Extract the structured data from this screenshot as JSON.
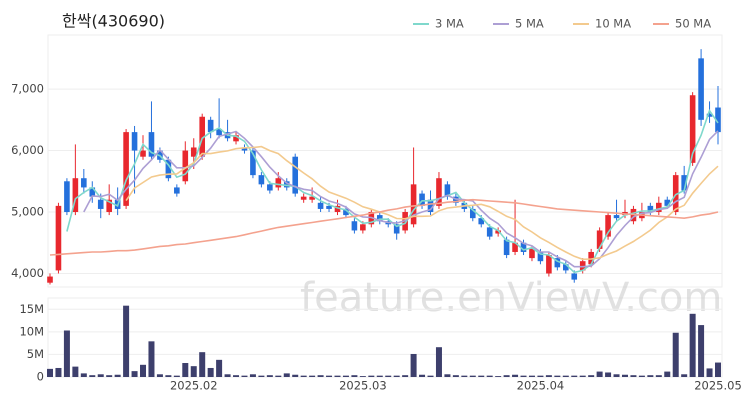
{
  "chart_data": [
    {
      "type": "candlestick",
      "title": "한싹(430690)",
      "watermark": "feature.enViewV.com",
      "categories": [
        null,
        null,
        null,
        null,
        null,
        null,
        null,
        null,
        null,
        null,
        null,
        null,
        null,
        null,
        null,
        null,
        null,
        "2025.02",
        null,
        null,
        null,
        null,
        null,
        null,
        null,
        null,
        null,
        null,
        null,
        null,
        null,
        null,
        null,
        null,
        null,
        null,
        null,
        "2025.03",
        null,
        null,
        null,
        null,
        null,
        null,
        null,
        null,
        null,
        null,
        null,
        null,
        null,
        null,
        null,
        null,
        null,
        null,
        null,
        null,
        "2025.04",
        null,
        null,
        null,
        null,
        null,
        null,
        null,
        null,
        null,
        null,
        null,
        null,
        null,
        null,
        null,
        null,
        null,
        null,
        null,
        null,
        "2025.05"
      ],
      "open": [
        3850,
        4050,
        5500,
        5000,
        5550,
        5400,
        5200,
        5000,
        5200,
        5100,
        6300,
        5900,
        6300,
        6000,
        5850,
        5400,
        5500,
        5900,
        5900,
        6500,
        6350,
        6300,
        6150,
        6050,
        6000,
        5600,
        5450,
        5400,
        5500,
        5900,
        5200,
        5200,
        5150,
        5100,
        5000,
        5050,
        4850,
        4700,
        4800,
        4950,
        4850,
        4800,
        4700,
        4800,
        5300,
        5200,
        5100,
        5450,
        5250,
        5150,
        5050,
        4900,
        4750,
        4650,
        4550,
        4350,
        4500,
        4250,
        4350,
        4000,
        4250,
        4150,
        4000,
        4050,
        4150,
        4400,
        4600,
        4950,
        4950,
        4850,
        4900,
        5100,
        5000,
        5200,
        5000,
        5600,
        5800,
        7500,
        6600,
        6700
      ],
      "high": [
        4000,
        5150,
        5550,
        6100,
        5700,
        5500,
        5300,
        5450,
        5400,
        6350,
        6400,
        6250,
        6800,
        6050,
        5900,
        5450,
        6150,
        6200,
        6600,
        6550,
        6850,
        6500,
        6300,
        6100,
        6050,
        5650,
        5500,
        5650,
        5550,
        5950,
        5300,
        5400,
        5250,
        5150,
        5200,
        5100,
        4900,
        4850,
        5050,
        5000,
        4900,
        4850,
        5050,
        6050,
        5350,
        5350,
        5650,
        5500,
        5300,
        5200,
        5100,
        4950,
        4800,
        4750,
        4600,
        5200,
        4550,
        4450,
        4400,
        4350,
        4300,
        4200,
        4050,
        4250,
        4400,
        4750,
        5000,
        5200,
        5200,
        5100,
        5150,
        5150,
        5250,
        5250,
        5650,
        5750,
        6950,
        7650,
        6800,
        7050
      ],
      "low": [
        3820,
        4000,
        4950,
        4950,
        5300,
        5150,
        4900,
        4950,
        4950,
        5050,
        5300,
        5850,
        5850,
        5800,
        5500,
        5250,
        5450,
        5700,
        5850,
        6200,
        6200,
        6150,
        6100,
        5950,
        5550,
        5400,
        5300,
        5350,
        5350,
        5250,
        5150,
        5150,
        5000,
        5000,
        4950,
        4900,
        4650,
        4650,
        4750,
        4800,
        4750,
        4550,
        4650,
        4750,
        5050,
        4950,
        5050,
        5200,
        5100,
        5000,
        4850,
        4750,
        4550,
        4600,
        4250,
        4300,
        4300,
        4200,
        4150,
        3950,
        4050,
        4000,
        3850,
        4000,
        4100,
        4350,
        4550,
        4850,
        4900,
        4800,
        4850,
        4950,
        4950,
        5050,
        4950,
        5300,
        5750,
        6400,
        6450,
        6100
      ],
      "close": [
        3950,
        5100,
        5000,
        5550,
        5400,
        5250,
        5050,
        5200,
        5050,
        6300,
        6000,
        6000,
        5900,
        5850,
        5550,
        5300,
        6000,
        6050,
        6550,
        6300,
        6250,
        6200,
        6250,
        6000,
        5600,
        5450,
        5350,
        5550,
        5400,
        5300,
        5250,
        5250,
        5050,
        5050,
        5100,
        4950,
        4700,
        4800,
        5000,
        4850,
        4800,
        4650,
        5000,
        5450,
        5100,
        5000,
        5550,
        5250,
        5150,
        5050,
        4900,
        4800,
        4600,
        4700,
        4300,
        4500,
        4350,
        4400,
        4200,
        4300,
        4100,
        4050,
        3900,
        4200,
        4350,
        4700,
        4950,
        4900,
        5000,
        5050,
        5000,
        5000,
        5150,
        5100,
        5600,
        5350,
        6900,
        6500,
        6550,
        6300
      ],
      "up_color": "#e8282e",
      "down_color": "#2470dc",
      "series": [
        {
          "name": "3 MA",
          "color": "#7fd8cc",
          "values": [
            null,
            null,
            4683,
            5217,
            5317,
            5400,
            5233,
            5167,
            5100,
            5517,
            5783,
            6100,
            5967,
            5917,
            5767,
            5567,
            5617,
            5783,
            6200,
            6300,
            6367,
            6250,
            6233,
            6150,
            5950,
            5683,
            5467,
            5450,
            5433,
            5417,
            5317,
            5267,
            5183,
            5117,
            5067,
            5033,
            4917,
            4817,
            4833,
            4883,
            4883,
            4767,
            4817,
            5033,
            5183,
            5183,
            5217,
            5267,
            5317,
            5150,
            5033,
            4917,
            4767,
            4700,
            4533,
            4500,
            4383,
            4417,
            4317,
            4300,
            4200,
            4150,
            4017,
            4050,
            4150,
            4417,
            4667,
            4850,
            4950,
            4983,
            5017,
            5017,
            5050,
            5083,
            5283,
            5350,
            5950,
            6250,
            6650,
            6450
          ]
        },
        {
          "name": "5 MA",
          "color": "#ad9fd4",
          "values": [
            null,
            null,
            null,
            null,
            5000,
            5260,
            5250,
            5290,
            5190,
            5370,
            5520,
            5710,
            5850,
            6010,
            5860,
            5720,
            5720,
            5750,
            5890,
            6040,
            6230,
            6270,
            6310,
            6200,
            6060,
            5900,
            5730,
            5590,
            5470,
            5410,
            5370,
            5350,
            5250,
            5180,
            5140,
            5080,
            4970,
            4920,
            4910,
            4860,
            4830,
            4820,
            4860,
            4950,
            5000,
            5040,
            5220,
            5270,
            5210,
            5200,
            5180,
            5030,
            4900,
            4810,
            4660,
            4580,
            4490,
            4450,
            4350,
            4350,
            4270,
            4210,
            4110,
            4110,
            4120,
            4240,
            4420,
            4620,
            4780,
            4920,
            4980,
            4990,
            5040,
            5060,
            5170,
            5240,
            5620,
            5890,
            6180,
            6320
          ]
        },
        {
          "name": "10 MA",
          "color": "#f3ca8e",
          "values": [
            null,
            null,
            null,
            null,
            null,
            null,
            null,
            null,
            null,
            5185,
            5390,
            5480,
            5570,
            5600,
            5615,
            5620,
            5715,
            5800,
            5950,
            5950,
            5975,
            5995,
            6030,
            6045,
            6050,
            6065,
            6000,
            5950,
            5835,
            5735,
            5635,
            5540,
            5420,
            5325,
            5275,
            5225,
            5160,
            5085,
            5045,
            5000,
            4955,
            4895,
            4890,
            4930,
            4930,
            4935,
            5020,
            5065,
            5080,
            5100,
            5110,
            5125,
            5085,
            5010,
            4930,
            4880,
            4760,
            4675,
            4580,
            4505,
            4425,
            4350,
            4280,
            4230,
            4235,
            4255,
            4315,
            4365,
            4445,
            4520,
            4610,
            4705,
            4830,
            4920,
            5045,
            5110,
            5305,
            5465,
            5620,
            5745
          ]
        },
        {
          "name": "50 MA",
          "color": "#f4a28e",
          "values": [
            4300,
            4310,
            4320,
            4330,
            4340,
            4350,
            4350,
            4360,
            4370,
            4370,
            4380,
            4400,
            4420,
            4440,
            4450,
            4470,
            4480,
            4500,
            4520,
            4540,
            4560,
            4580,
            4600,
            4630,
            4660,
            4690,
            4720,
            4750,
            4770,
            4790,
            4810,
            4830,
            4850,
            4870,
            4890,
            4910,
            4930,
            4950,
            4980,
            5000,
            5030,
            5050,
            5080,
            5100,
            5110,
            5130,
            5140,
            5160,
            5170,
            5190,
            5200,
            5190,
            5180,
            5170,
            5160,
            5150,
            5130,
            5110,
            5090,
            5070,
            5050,
            5040,
            5030,
            5020,
            5010,
            5000,
            4990,
            4980,
            4970,
            4960,
            4950,
            4940,
            4930,
            4920,
            4910,
            4900,
            4920,
            4950,
            4970,
            5000
          ]
        }
      ],
      "legend": "top-right",
      "ylim": [
        3780,
        7880
      ],
      "yticks": [
        {
          "value": 4000,
          "label": "4,000"
        },
        {
          "value": 5000,
          "label": "5,000"
        },
        {
          "value": 6000,
          "label": "6,000"
        },
        {
          "value": 7000,
          "label": "7,000"
        }
      ],
      "grid": true
    },
    {
      "type": "bar",
      "color": "#3d3f6c",
      "values": [
        1.8,
        2.0,
        10.3,
        2.3,
        0.8,
        0.4,
        0.6,
        0.4,
        0.5,
        15.8,
        1.3,
        2.7,
        7.9,
        0.6,
        0.4,
        0.3,
        3.1,
        2.4,
        5.5,
        2.0,
        3.8,
        0.6,
        0.4,
        0.3,
        0.6,
        0.3,
        0.4,
        0.3,
        0.8,
        0.5,
        0.3,
        0.3,
        0.4,
        0.3,
        0.3,
        0.3,
        0.4,
        0.2,
        0.3,
        0.3,
        0.3,
        0.3,
        0.4,
        5.1,
        0.5,
        0.3,
        6.6,
        0.6,
        0.4,
        0.3,
        0.3,
        0.3,
        0.3,
        0.2,
        0.4,
        0.5,
        0.3,
        0.3,
        0.3,
        0.4,
        0.3,
        0.3,
        0.3,
        0.3,
        0.4,
        1.2,
        1.0,
        0.6,
        0.5,
        0.4,
        0.3,
        0.4,
        0.4,
        1.2,
        9.8,
        0.6,
        14.0,
        11.5,
        1.9,
        3.2
      ],
      "ylim": [
        0,
        17.5
      ],
      "yticks": [
        0,
        {
          "value": 5,
          "label": "5M"
        },
        {
          "value": 10,
          "label": "10M"
        },
        {
          "value": 15,
          "label": "15M"
        }
      ],
      "grid": true
    }
  ]
}
